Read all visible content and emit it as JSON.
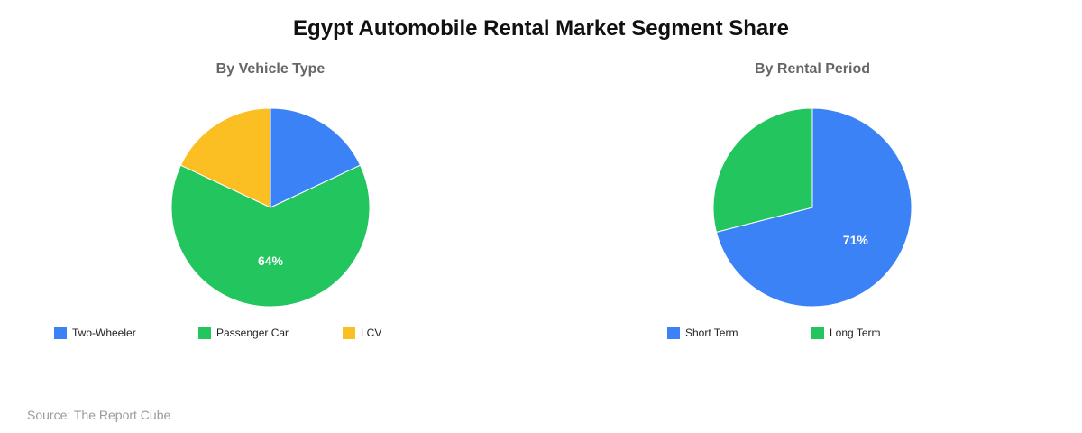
{
  "title": "Egypt Automobile Rental Market Segment Share",
  "source": "Source: The Report Cube",
  "chart_data": [
    {
      "type": "pie",
      "title": "By Vehicle Type",
      "slices": [
        {
          "label": "Two-Wheeler",
          "value": 18,
          "color": "#3b82f6",
          "show_label": false
        },
        {
          "label": "Passenger Car",
          "value": 64,
          "color": "#22c55e",
          "show_label": true,
          "display": "64%"
        },
        {
          "label": "LCV",
          "value": 18,
          "color": "#fbbf24",
          "show_label": false
        }
      ],
      "legend_position": "bottom"
    },
    {
      "type": "pie",
      "title": "By Rental Period",
      "slices": [
        {
          "label": "Short Term",
          "value": 71,
          "color": "#3b82f6",
          "show_label": true,
          "display": "71%"
        },
        {
          "label": "Long Term",
          "value": 29,
          "color": "#22c55e",
          "show_label": false
        }
      ],
      "legend_position": "bottom"
    }
  ]
}
